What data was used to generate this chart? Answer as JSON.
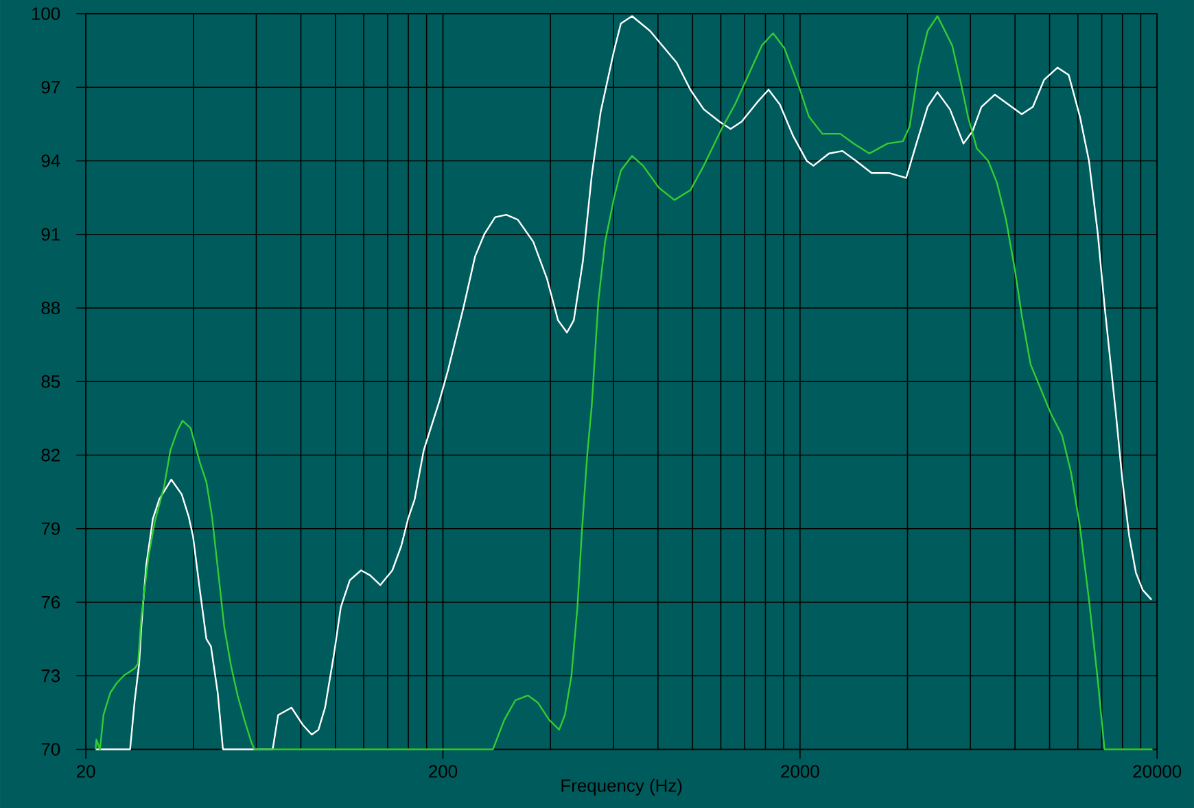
{
  "chart_data": {
    "type": "line",
    "xlabel": "Frequency (Hz)",
    "log": "x",
    "grid": true,
    "xlim": [
      20,
      20000
    ],
    "ylim": [
      70,
      100
    ],
    "xticks": [
      20,
      {
        "value": 40,
        "label": null
      },
      {
        "value": 60,
        "label": null
      },
      {
        "value": 80,
        "label": null
      },
      {
        "value": 100,
        "label": null
      },
      {
        "value": 120,
        "label": null
      },
      {
        "value": 140,
        "label": null
      },
      {
        "value": 160,
        "label": null
      },
      {
        "value": 180,
        "label": null
      },
      200,
      {
        "value": 400,
        "label": null
      },
      {
        "value": 600,
        "label": null
      },
      {
        "value": 800,
        "label": null
      },
      {
        "value": 1000,
        "label": null
      },
      {
        "value": 1200,
        "label": null
      },
      {
        "value": 1400,
        "label": null
      },
      {
        "value": 1600,
        "label": null
      },
      {
        "value": 1800,
        "label": null
      },
      2000,
      {
        "value": 4000,
        "label": null
      },
      {
        "value": 6000,
        "label": null
      },
      {
        "value": 8000,
        "label": null
      },
      {
        "value": 10000,
        "label": null
      },
      {
        "value": 12000,
        "label": null
      },
      {
        "value": 14000,
        "label": null
      },
      {
        "value": 16000,
        "label": null
      },
      {
        "value": 18000,
        "label": null
      },
      20000
    ],
    "yticks": [
      70,
      73,
      76,
      79,
      82,
      85,
      88,
      91,
      94,
      97,
      100
    ],
    "series": [
      {
        "color": "#ffffff",
        "x": [
          21.3,
          26.6,
          27.4,
          28.2,
          28.6,
          29.5,
          30.8,
          32.1,
          34.7,
          37.1,
          38.8,
          39.9,
          41.7,
          43.5,
          44.8,
          46.8,
          48.4,
          66.7,
          69.1,
          75.3,
          81,
          85.8,
          89.6,
          93.5,
          99.1,
          103.5,
          109.7,
          117.9,
          124.9,
          133.5,
          144.3,
          152.9,
          159.7,
          166.7,
          176.7,
          195.4,
          207,
          229,
          246,
          261,
          280,
          301,
          324,
          358,
          391,
          420,
          445,
          465,
          493,
          522,
          553,
          603,
          630,
          677,
          760,
          903,
          986,
          1075,
          1189,
          1278,
          1373,
          1520,
          1633,
          1756,
          1915,
          2088,
          2180,
          2411,
          2630,
          2869,
          3174,
          3562,
          3966,
          4236,
          4555,
          4853,
          5260,
          5738,
          6080,
          6444,
          7026,
          7664,
          8356,
          8978,
          9650,
          10520,
          11310,
          12160,
          12890,
          13650,
          14250,
          15330,
          16010,
          16710,
          17450,
          18230,
          19300
        ],
        "values": [
          70,
          70,
          72.0,
          73.5,
          75.0,
          77.5,
          79.4,
          80.2,
          81.0,
          80.4,
          79.5,
          78.7,
          76.5,
          74.5,
          74.2,
          72.3,
          70,
          70,
          71.4,
          71.7,
          71.0,
          70.6,
          70.8,
          71.7,
          73.9,
          75.8,
          76.9,
          77.3,
          77.1,
          76.7,
          77.3,
          78.3,
          79.4,
          80.2,
          82.2,
          84.2,
          85.5,
          88.1,
          90.1,
          91.0,
          91.7,
          91.8,
          91.6,
          90.7,
          89.2,
          87.5,
          87.0,
          87.5,
          89.9,
          93.4,
          96.0,
          98.5,
          99.6,
          99.9,
          99.3,
          98.0,
          96.9,
          96.1,
          95.6,
          95.3,
          95.6,
          96.4,
          96.9,
          96.3,
          95.0,
          94.0,
          93.8,
          94.3,
          94.4,
          94.0,
          93.5,
          93.5,
          93.3,
          94.7,
          96.2,
          96.8,
          96.1,
          94.7,
          95.2,
          96.2,
          96.7,
          96.3,
          95.9,
          96.2,
          97.3,
          97.8,
          97.5,
          95.8,
          94.0,
          91.0,
          88.1,
          83.7,
          80.9,
          78.7,
          77.2,
          76.5,
          76.1
        ]
      },
      {
        "color": "#33cc33",
        "x": [
          21.3,
          21.4,
          21.9,
          22.4,
          23.4,
          24.4,
          25.5,
          27.4,
          28.0,
          28.6,
          29.9,
          31.2,
          33.1,
          34.5,
          36.1,
          37.3,
          39.3,
          41.7,
          43.5,
          45.1,
          46.8,
          48.8,
          51.0,
          53.2,
          55.6,
          58.1,
          59.3,
          276,
          297,
          319,
          346,
          369,
          397,
          423,
          439,
          458,
          476,
          490,
          507,
          522,
          545,
          569,
          603,
          630,
          677,
          727,
          805,
          890,
          986,
          1075,
          1206,
          1315,
          1434,
          1563,
          1681,
          1807,
          1942,
          2000,
          2118,
          2310,
          2594,
          2830,
          3128,
          3514,
          3885,
          4056,
          4298,
          4555,
          4853,
          5338,
          5657,
          5908,
          6257,
          6730,
          7124,
          7551,
          8005,
          8356,
          8846,
          10080,
          10840,
          11480,
          12160,
          12890,
          13650,
          14250,
          19420
        ],
        "values": [
          70,
          70.4,
          70,
          71.4,
          72.3,
          72.7,
          73.0,
          73.3,
          73.5,
          75.4,
          77.8,
          79.3,
          80.7,
          82.2,
          83.0,
          83.4,
          83.1,
          81.7,
          80.9,
          79.5,
          77.4,
          75.0,
          73.4,
          72.2,
          71.2,
          70.3,
          70,
          70,
          71.2,
          72.0,
          72.2,
          71.9,
          71.2,
          70.8,
          71.4,
          73.0,
          75.8,
          78.9,
          82.0,
          84.0,
          88.3,
          90.7,
          92.5,
          93.6,
          94.2,
          93.8,
          92.9,
          92.4,
          92.8,
          93.8,
          95.3,
          96.3,
          97.5,
          98.7,
          99.2,
          98.6,
          97.4,
          96.9,
          95.8,
          95.1,
          95.1,
          94.7,
          94.3,
          94.7,
          94.8,
          95.4,
          97.8,
          99.3,
          99.9,
          98.7,
          97.1,
          95.8,
          94.5,
          94.0,
          93.1,
          91.6,
          89.5,
          87.7,
          85.7,
          83.7,
          82.8,
          81.3,
          79.1,
          76.1,
          72.8,
          70,
          70
        ]
      }
    ]
  }
}
